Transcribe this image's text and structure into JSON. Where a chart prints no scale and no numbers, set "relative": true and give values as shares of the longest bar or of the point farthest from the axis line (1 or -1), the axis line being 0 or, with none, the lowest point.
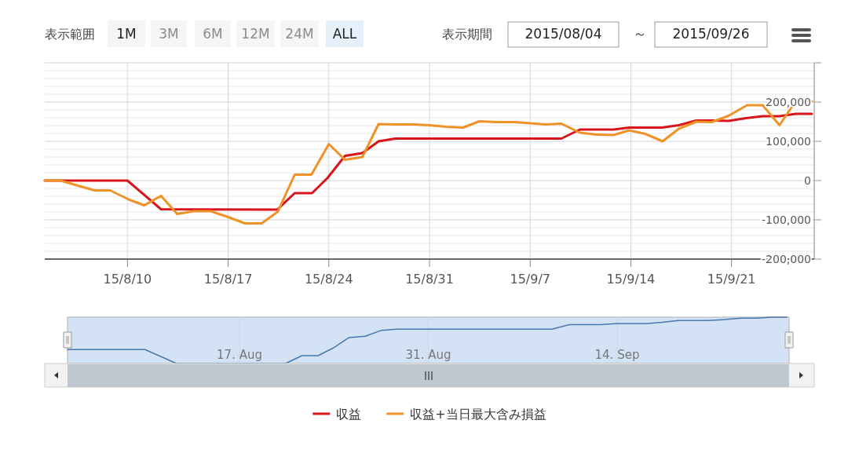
{
  "chart_data": [
    {
      "type": "line",
      "annotations": [
        "表示範囲",
        "1M",
        "3M",
        "6M",
        "12M",
        "24M",
        "ALL",
        "表示期間",
        "2015/08/04",
        "～",
        "2015/09/26"
      ],
      "xlim": [
        "2015-08-04T06:00",
        "2015-09-26T18:00"
      ],
      "xticks": [
        {
          "value": "2015-08-10",
          "label": "15/8/10"
        },
        {
          "value": "2015-08-17",
          "label": "15/8/17"
        },
        {
          "value": "2015-08-24",
          "label": "15/8/24"
        },
        {
          "value": "2015-08-31",
          "label": "15/8/31"
        },
        {
          "value": "2015-09-07",
          "label": "15/9/7"
        },
        {
          "value": "2015-09-14",
          "label": "15/9/14"
        },
        {
          "value": "2015-09-21",
          "label": "15/9/21"
        }
      ],
      "ylim": [
        -200000,
        300000
      ],
      "yticks": [
        {
          "value": -200000,
          "label": "-200,000"
        },
        {
          "value": -100000,
          "label": "-100,000"
        },
        0,
        {
          "value": 100000,
          "label": "100,000"
        },
        {
          "value": 200000,
          "label": "200,000"
        },
        {
          "value": 300000,
          "label": null
        }
      ],
      "grid": true,
      "legend": "bottom",
      "series": [
        {
          "name": "収益",
          "color": "#d9151b",
          "x": [
            "2015-08-04T06:00",
            "2015-08-10T00:00",
            "2015-08-12T08:00",
            "2015-08-20T10:00",
            "2015-08-21T15:00",
            "2015-08-22T20:00",
            "2015-08-23T22:00",
            "2015-08-25T03:00",
            "2015-08-26T08:00",
            "2015-08-27T11:00",
            "2015-08-28T15:00",
            "2015-09-09T04:00",
            "2015-09-10T11:00",
            "2015-09-12T19:00",
            "2015-09-13T21:00",
            "2015-09-16T04:00",
            "2015-09-17T08:00",
            "2015-09-18T13:00",
            "2015-09-19T15:00",
            "2015-09-20T19:00",
            "2015-09-22T00:00",
            "2015-09-23T04:00",
            "2015-09-24T08:00",
            "2015-09-25T11:00",
            "2015-09-26T14:00"
          ],
          "values": [
            0,
            0,
            -73000,
            -74000,
            -32000,
            -32000,
            7000,
            63000,
            70000,
            100000,
            107000,
            107000,
            130000,
            130000,
            135000,
            135000,
            141000,
            153000,
            153000,
            152000,
            159000,
            164000,
            164000,
            170000,
            170000
          ]
        },
        {
          "name": "収益+当日最大含み損益",
          "color": "#ef9227",
          "x": [
            "2015-08-04T06:00",
            "2015-08-05T08:00",
            "2015-08-07T17:00",
            "2015-08-08T19:00",
            "2015-08-10T02:00",
            "2015-08-11T04:00",
            "2015-08-12T08:00",
            "2015-08-13T11:00",
            "2015-08-14T15:00",
            "2015-08-15T19:00",
            "2015-08-17T00:00",
            "2015-08-18T04:00",
            "2015-08-19T08:00",
            "2015-08-20T11:00",
            "2015-08-21T15:00",
            "2015-08-22T19:00",
            "2015-08-24T00:00",
            "2015-08-25T03:00",
            "2015-08-26T08:00",
            "2015-08-27T11:00",
            "2015-08-28T15:00",
            "2015-08-29T21:00",
            "2015-08-31T00:00",
            "2015-09-01T04:00",
            "2015-09-02T08:00",
            "2015-09-03T11:00",
            "2015-09-04T17:00",
            "2015-09-05T22:00",
            "2015-09-07T00:00",
            "2015-09-08T02:00",
            "2015-09-09T04:00",
            "2015-09-10T11:00",
            "2015-09-11T15:00",
            "2015-09-12T19:00",
            "2015-09-13T21:00",
            "2015-09-15T00:00",
            "2015-09-16T05:00",
            "2015-09-17T08:00",
            "2015-09-18T13:00",
            "2015-09-19T15:00",
            "2015-09-20T19:00",
            "2015-09-22T02:00",
            "2015-09-23T04:00",
            "2015-09-24T08:00",
            "2015-09-25T11:00",
            "2015-09-26T14:00"
          ],
          "values": [
            0,
            0,
            -25000,
            -25000,
            -48000,
            -63000,
            -39000,
            -85000,
            -78000,
            -78000,
            -93000,
            -109000,
            -109000,
            -79000,
            15000,
            15000,
            93000,
            53000,
            60000,
            144000,
            143000,
            143000,
            141000,
            137000,
            135000,
            151000,
            149000,
            149000,
            146000,
            143000,
            145000,
            122000,
            117000,
            116000,
            128000,
            119000,
            100000,
            132000,
            150000,
            149000,
            165000,
            192000,
            192000,
            141000,
            202000,
            202000
          ]
        }
      ]
    },
    {
      "type": "line",
      "relative": true,
      "tick_labels": "x",
      "grid": "x",
      "xlim": [
        "2015-08-04T06:00",
        "2015-09-26T18:00"
      ],
      "xticks": [
        {
          "value": "2015-08-17",
          "label": "17. Aug"
        },
        {
          "value": "2015-08-31",
          "label": "31. Aug"
        },
        {
          "value": "2015-09-14",
          "label": "14. Sep"
        }
      ],
      "series": [
        {
          "color": "#4a77ad",
          "x": [
            "2015-08-04T06:00",
            "2015-08-10T00:00",
            "2015-08-12T08:00",
            "2015-08-20T10:00",
            "2015-08-21T15:00",
            "2015-08-22T20:00",
            "2015-08-23T22:00",
            "2015-08-25T03:00",
            "2015-08-26T08:00",
            "2015-08-27T11:00",
            "2015-08-28T15:00",
            "2015-09-09T04:00",
            "2015-09-10T11:00",
            "2015-09-12T19:00",
            "2015-09-13T21:00",
            "2015-09-16T04:00",
            "2015-09-17T08:00",
            "2015-09-18T13:00",
            "2015-09-19T15:00",
            "2015-09-20T19:00",
            "2015-09-22T00:00",
            "2015-09-23T04:00",
            "2015-09-24T08:00",
            "2015-09-25T11:00",
            "2015-09-26T14:00"
          ],
          "values": [
            0.3,
            0.3,
            0,
            0,
            0.17,
            0.17,
            0.33,
            0.56,
            0.59,
            0.71,
            0.74,
            0.74,
            0.84,
            0.84,
            0.86,
            0.86,
            0.89,
            0.93,
            0.93,
            0.93,
            0.95,
            0.98,
            0.98,
            1,
            1
          ]
        }
      ]
    }
  ]
}
